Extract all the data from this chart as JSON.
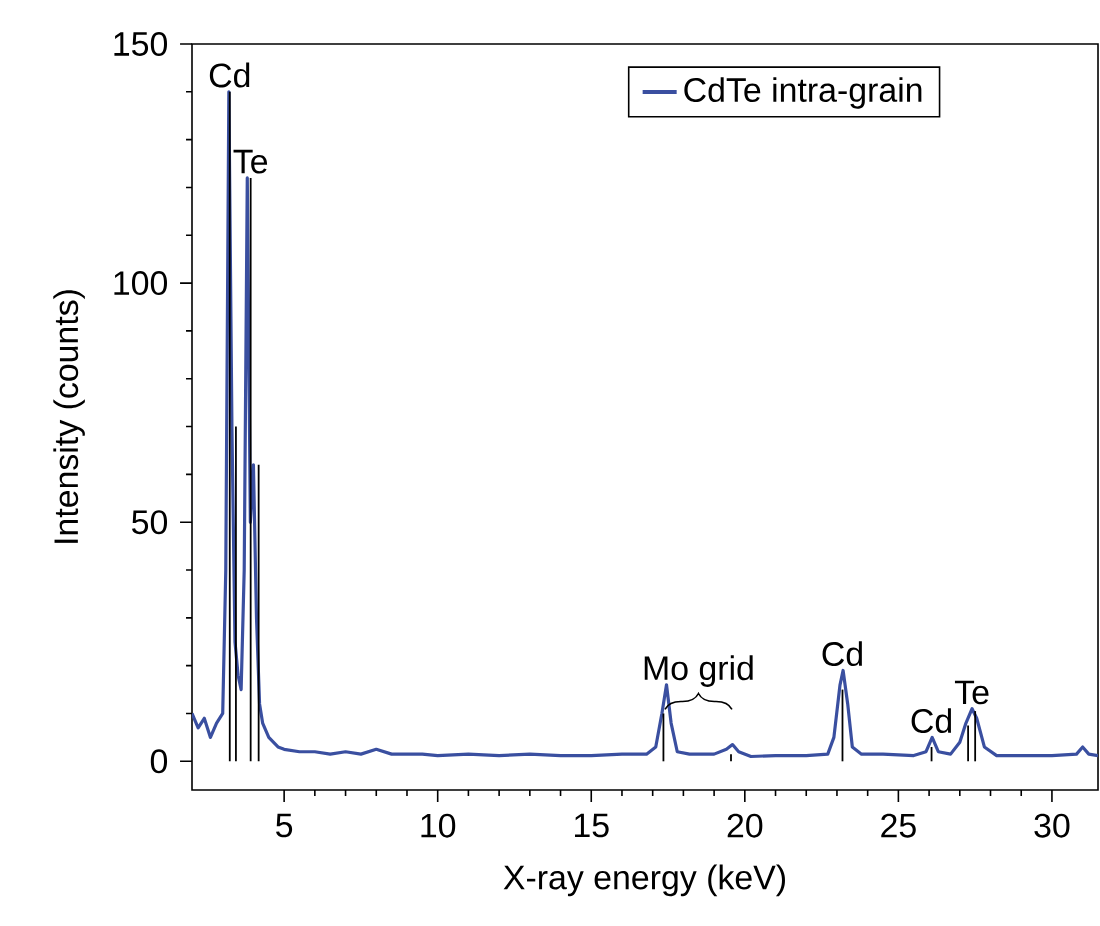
{
  "chart_data": {
    "type": "line",
    "xlabel": "X-ray energy (keV)",
    "ylabel": "Intensity (counts)",
    "xlim": [
      2,
      31.5
    ],
    "ylim": [
      -6,
      150
    ],
    "xticks": [
      5,
      10,
      15,
      20,
      25,
      30
    ],
    "yticks": [
      0,
      50,
      100,
      150
    ],
    "legend": "top right",
    "grid": false,
    "marker": "none",
    "line_style": "solid",
    "series": [
      {
        "name": "CdTe intra-grain",
        "color": "#3a4fa0",
        "x": [
          2.0,
          2.2,
          2.4,
          2.6,
          2.8,
          3.0,
          3.1,
          3.2,
          3.3,
          3.4,
          3.5,
          3.6,
          3.7,
          3.8,
          3.9,
          4.0,
          4.1,
          4.2,
          4.3,
          4.5,
          4.8,
          5.0,
          5.5,
          6.0,
          6.5,
          7.0,
          7.5,
          8.0,
          8.5,
          9.0,
          9.5,
          10.0,
          11.0,
          12.0,
          13.0,
          14.0,
          15.0,
          16.0,
          16.8,
          17.1,
          17.3,
          17.45,
          17.6,
          17.8,
          18.2,
          19.0,
          19.4,
          19.6,
          19.8,
          20.2,
          21.0,
          22.0,
          22.7,
          22.9,
          23.1,
          23.2,
          23.35,
          23.5,
          23.8,
          24.5,
          25.5,
          25.9,
          26.1,
          26.3,
          26.7,
          27.0,
          27.2,
          27.4,
          27.55,
          27.8,
          28.2,
          29.0,
          30.0,
          30.8,
          31.0,
          31.2,
          31.5
        ],
        "values": [
          10,
          7,
          9,
          5,
          8,
          10,
          40,
          140,
          70,
          25,
          18,
          15,
          40,
          122,
          50,
          62,
          30,
          12,
          8,
          5,
          3,
          2.5,
          2,
          2,
          1.5,
          2,
          1.5,
          2.5,
          1.5,
          1.5,
          1.5,
          1.2,
          1.5,
          1.2,
          1.5,
          1.2,
          1.2,
          1.5,
          1.5,
          3,
          10,
          16,
          8,
          2,
          1.5,
          1.5,
          2.5,
          3.5,
          2,
          1,
          1.2,
          1.2,
          1.5,
          5,
          16,
          19,
          12,
          3,
          1.5,
          1.5,
          1.2,
          2,
          5,
          2,
          1.5,
          4,
          8,
          11,
          9,
          3,
          1.2,
          1.2,
          1.2,
          1.5,
          3,
          1.5,
          1.2
        ]
      },
      {
        "color": "#000000",
        "type": "bar",
        "x": [
          3.23,
          3.43,
          3.91,
          4.17,
          17.35,
          19.55,
          23.18,
          26.08,
          27.27,
          27.5
        ],
        "values": [
          140,
          70,
          122,
          62,
          10,
          1.5,
          15,
          3,
          7.5,
          10.5
        ]
      }
    ],
    "annotations": [
      {
        "text": "Cd",
        "x": 3.23,
        "y": 140
      },
      {
        "text": "Te",
        "x": 3.91,
        "y": 122
      },
      "Mo grid",
      {
        "text": "Cd",
        "x": 23.18,
        "y": 19
      },
      {
        "text": "Cd",
        "x": 26.08,
        "y": 5
      },
      {
        "text": "Te",
        "x": 27.4,
        "y": 11
      }
    ]
  }
}
